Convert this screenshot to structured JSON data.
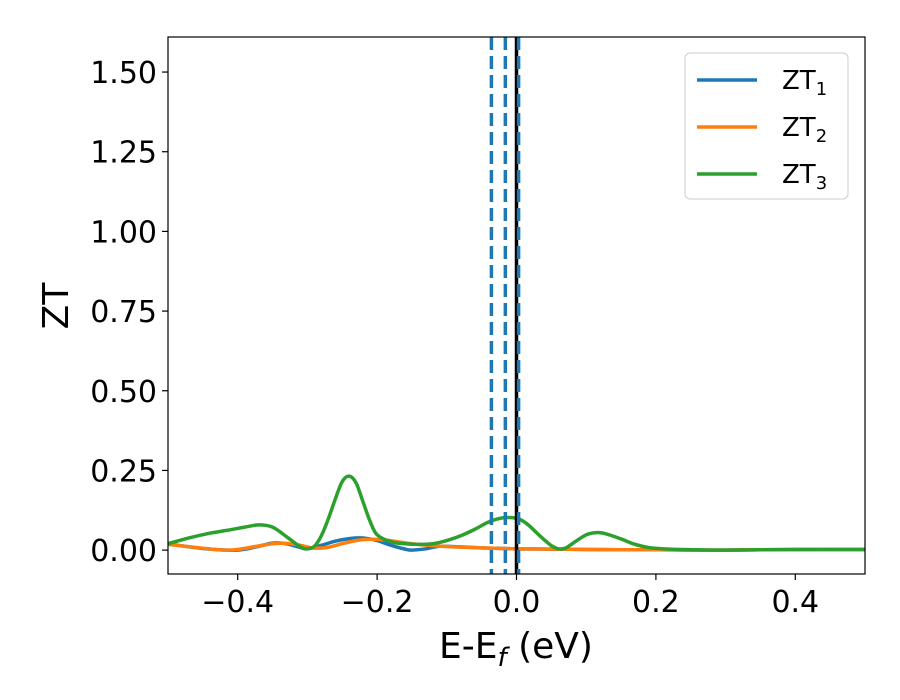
{
  "chart_data": {
    "type": "line",
    "xlabel_main": "E-E",
    "xlabel_sub": "f",
    "xlabel_unit": " (eV)",
    "ylabel": "ZT",
    "xlim": [
      -0.5,
      0.5
    ],
    "ylim": [
      -0.075,
      1.61
    ],
    "x_ticks": [
      -0.4,
      -0.2,
      0.0,
      0.2,
      0.4
    ],
    "x_tick_labels": [
      "−0.4",
      "−0.2",
      "0.0",
      "0.2",
      "0.4"
    ],
    "y_ticks": [
      0.0,
      0.25,
      0.5,
      0.75,
      1.0,
      1.25,
      1.5
    ],
    "y_tick_labels": [
      "0.00",
      "0.25",
      "0.50",
      "0.75",
      "1.00",
      "1.25",
      "1.50"
    ],
    "grid": false,
    "legend_position": "top-right",
    "series": [
      {
        "name": "ZT",
        "subscript": "1",
        "color": "#1f77b4",
        "x": [
          -0.5,
          -0.45,
          -0.4,
          -0.37,
          -0.35,
          -0.33,
          -0.31,
          -0.3,
          -0.28,
          -0.26,
          -0.24,
          -0.22,
          -0.2,
          -0.18,
          -0.16,
          -0.15,
          -0.13,
          -0.11,
          -0.08,
          -0.05,
          -0.02,
          0.0,
          0.05,
          0.1,
          0.15,
          0.2,
          0.25,
          0.3,
          0.35,
          0.4,
          0.45,
          0.5
        ],
        "y": [
          0.02,
          0.005,
          0.0,
          0.012,
          0.022,
          0.02,
          0.008,
          0.004,
          0.015,
          0.028,
          0.036,
          0.038,
          0.03,
          0.015,
          0.003,
          0.0,
          0.004,
          0.012,
          0.01,
          0.007,
          0.005,
          0.004,
          0.003,
          0.002,
          0.001,
          0.001,
          0.0,
          0.0,
          0.001,
          0.002,
          0.002,
          0.002
        ]
      },
      {
        "name": "ZT",
        "subscript": "2",
        "color": "#ff7f0e",
        "x": [
          -0.5,
          -0.45,
          -0.42,
          -0.4,
          -0.37,
          -0.35,
          -0.33,
          -0.31,
          -0.29,
          -0.27,
          -0.25,
          -0.23,
          -0.21,
          -0.19,
          -0.17,
          -0.15,
          -0.12,
          -0.09,
          -0.05,
          -0.02,
          0.0,
          0.05,
          0.1,
          0.15,
          0.2,
          0.25,
          0.3,
          0.35,
          0.4,
          0.45,
          0.5
        ],
        "y": [
          0.018,
          0.006,
          0.0,
          0.002,
          0.013,
          0.02,
          0.021,
          0.015,
          0.006,
          0.009,
          0.02,
          0.03,
          0.034,
          0.032,
          0.026,
          0.02,
          0.014,
          0.01,
          0.007,
          0.005,
          0.004,
          0.003,
          0.002,
          0.001,
          0.001,
          0.0,
          0.0,
          0.001,
          0.001,
          0.002,
          0.002
        ]
      },
      {
        "name": "ZT",
        "subscript": "3",
        "color": "#2ca02c",
        "x": [
          -0.5,
          -0.47,
          -0.44,
          -0.41,
          -0.39,
          -0.37,
          -0.35,
          -0.33,
          -0.31,
          -0.3,
          -0.29,
          -0.28,
          -0.27,
          -0.26,
          -0.25,
          -0.24,
          -0.23,
          -0.22,
          -0.21,
          -0.2,
          -0.18,
          -0.16,
          -0.14,
          -0.12,
          -0.1,
          -0.08,
          -0.06,
          -0.04,
          -0.02,
          0.0,
          0.01,
          0.02,
          0.03,
          0.04,
          0.05,
          0.06,
          0.07,
          0.08,
          0.1,
          0.115,
          0.13,
          0.15,
          0.17,
          0.19,
          0.22,
          0.26,
          0.3,
          0.35,
          0.4,
          0.45,
          0.5
        ],
        "y": [
          0.02,
          0.038,
          0.053,
          0.064,
          0.072,
          0.079,
          0.072,
          0.042,
          0.01,
          0.004,
          0.012,
          0.045,
          0.098,
          0.16,
          0.215,
          0.232,
          0.21,
          0.15,
          0.09,
          0.048,
          0.026,
          0.02,
          0.018,
          0.02,
          0.03,
          0.045,
          0.065,
          0.088,
          0.101,
          0.1,
          0.09,
          0.073,
          0.052,
          0.032,
          0.014,
          0.004,
          0.006,
          0.02,
          0.048,
          0.055,
          0.05,
          0.035,
          0.018,
          0.008,
          0.003,
          0.001,
          0.0,
          0.001,
          0.002,
          0.002,
          0.002
        ]
      }
    ],
    "vlines": [
      {
        "x": -0.036,
        "color": "#1f77b4",
        "style": "dashed"
      },
      {
        "x": -0.016,
        "color": "#1f77b4",
        "style": "dashed"
      },
      {
        "x": 0.0,
        "color": "#000000",
        "style": "solid"
      },
      {
        "x": 0.003,
        "color": "#1f77b4",
        "style": "dashed"
      }
    ]
  }
}
